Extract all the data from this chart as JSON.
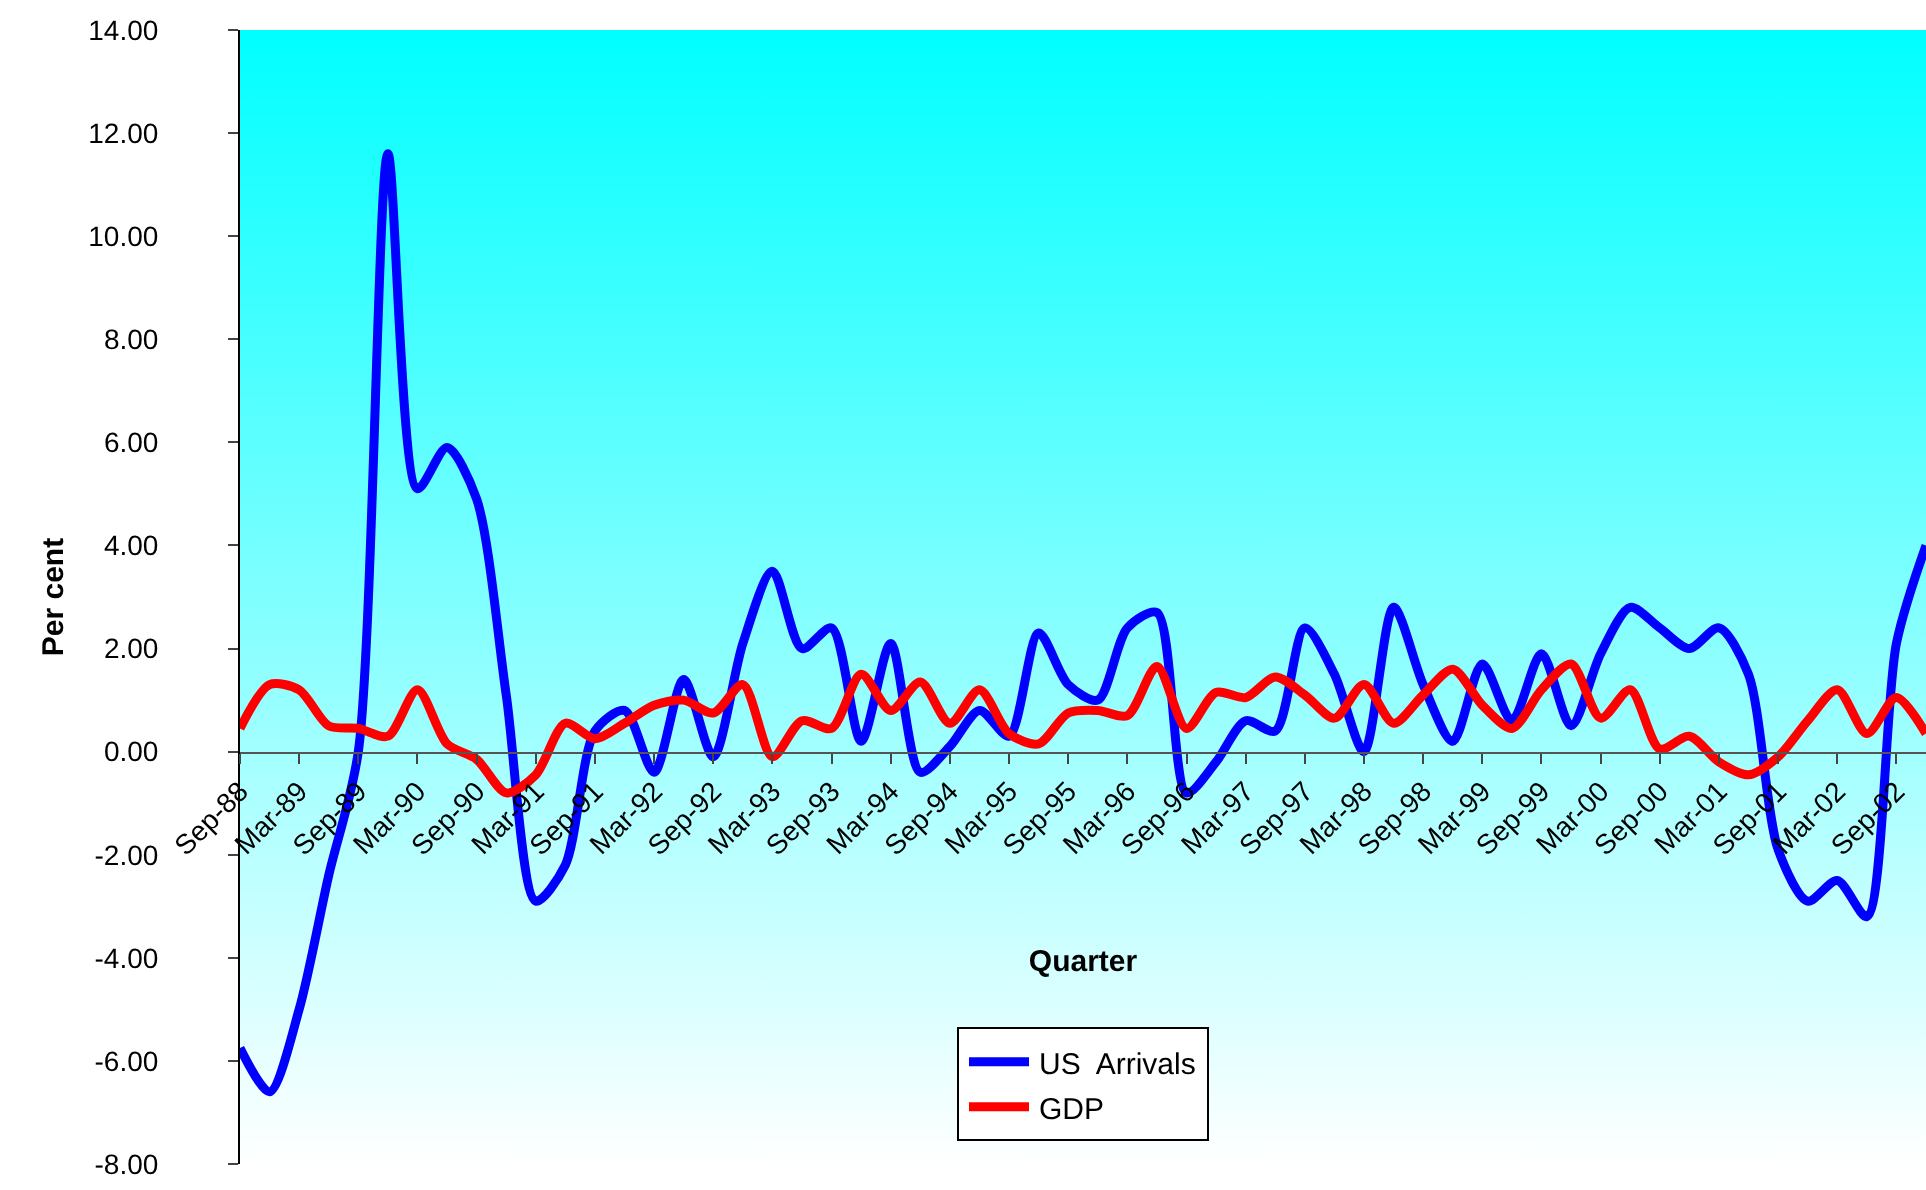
{
  "chart_data": {
    "type": "line",
    "xlabel": "Quarter",
    "ylabel": "Per cent",
    "categories": [
      "Sep-88",
      null,
      "Mar-89",
      null,
      "Sep-89",
      null,
      "Mar-90",
      null,
      "Sep-90",
      null,
      "Mar-91",
      null,
      "Sep-91",
      null,
      "Mar-92",
      null,
      "Sep-92",
      null,
      "Mar-93",
      null,
      "Sep-93",
      null,
      "Mar-94",
      null,
      "Sep-94",
      null,
      "Mar-95",
      null,
      "Sep-95",
      null,
      "Mar-96",
      null,
      "Sep-96",
      null,
      "Mar-97",
      null,
      "Sep-97",
      null,
      "Mar-98",
      null,
      "Sep-98",
      null,
      "Mar-99",
      null,
      "Sep-99",
      null,
      "Mar-00",
      null,
      "Sep-00",
      null,
      "Mar-01",
      null,
      "Sep-01",
      null,
      "Mar-02",
      null,
      "Sep-02",
      null
    ],
    "series": [
      {
        "name": "US  Arrivals",
        "color": "#0000ff",
        "values": [
          -5.75,
          -6.6,
          -5.0,
          -2.4,
          0.0,
          11.6,
          5.1,
          5.9,
          4.9,
          1.1,
          -2.9,
          -2.2,
          0.4,
          0.8,
          -0.4,
          1.4,
          -0.1,
          2.1,
          3.5,
          2.0,
          2.4,
          0.2,
          2.1,
          -0.4,
          0.1,
          0.8,
          0.3,
          2.3,
          1.3,
          1.0,
          2.4,
          2.7,
          -0.8,
          -0.2,
          0.6,
          0.4,
          2.4,
          1.5,
          0.0,
          2.8,
          1.3,
          0.2,
          1.7,
          0.6,
          1.9,
          0.5,
          1.9,
          2.8,
          2.4,
          2.0,
          2.4,
          1.5,
          -1.9,
          -2.9,
          -2.5,
          -3.2,
          2.1,
          4.0
        ]
      },
      {
        "name": "GDP",
        "color": "#ff0000",
        "values": [
          0.45,
          1.3,
          1.2,
          0.5,
          0.45,
          0.3,
          1.2,
          0.15,
          -0.15,
          -0.8,
          -0.45,
          0.55,
          0.25,
          0.55,
          0.9,
          1.0,
          0.75,
          1.3,
          -0.1,
          0.6,
          0.45,
          1.5,
          0.8,
          1.35,
          0.55,
          1.2,
          0.35,
          0.15,
          0.75,
          0.8,
          0.7,
          1.65,
          0.45,
          1.15,
          1.05,
          1.45,
          1.1,
          0.65,
          1.3,
          0.55,
          1.1,
          1.6,
          0.9,
          0.45,
          1.2,
          1.7,
          0.65,
          1.2,
          0.05,
          0.3,
          -0.2,
          -0.45,
          -0.1,
          0.6,
          1.2,
          0.35,
          1.05,
          0.35
        ]
      }
    ],
    "ylim": [
      -8,
      14
    ],
    "yticks": [
      {
        "value": -8,
        "label": "-8.00"
      },
      {
        "value": -6,
        "label": "-6.00"
      },
      {
        "value": -4,
        "label": "-4.00"
      },
      {
        "value": -2,
        "label": "-2.00"
      },
      {
        "value": 0,
        "label": "0.00"
      },
      {
        "value": 2,
        "label": "2.00"
      },
      {
        "value": 4,
        "label": "4.00"
      },
      {
        "value": 6,
        "label": "6.00"
      },
      {
        "value": 8,
        "label": "8.00"
      },
      {
        "value": 10,
        "label": "10.00"
      },
      {
        "value": 12,
        "label": "12.00"
      },
      {
        "value": 14,
        "label": "14.00"
      }
    ],
    "grid": false,
    "legend": "bottom",
    "marker": "none",
    "line_style": "solid"
  }
}
